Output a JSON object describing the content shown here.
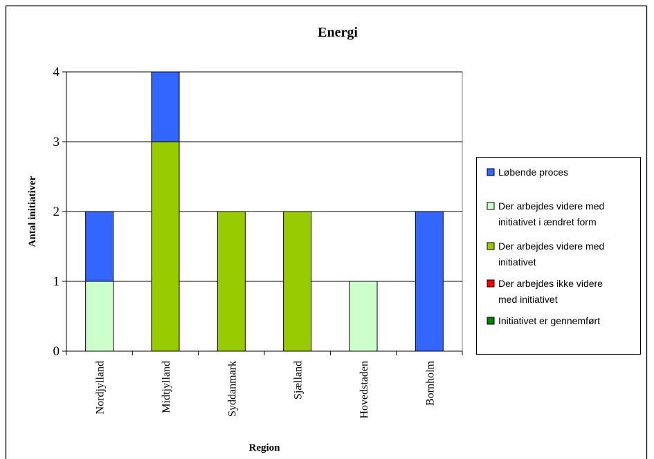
{
  "chart_data": {
    "type": "bar",
    "stacked": true,
    "title": "Energi",
    "xlabel": "Region",
    "ylabel": "Antal initiativer",
    "ylim": [
      0,
      4
    ],
    "yticks": [
      0,
      1,
      2,
      3,
      4
    ],
    "grid": true,
    "legend_position": "right",
    "categories": [
      "Nordjylland",
      "Midtjylland",
      "Syddanmark",
      "Sjælland",
      "Hovedstaden",
      "Bornholm"
    ],
    "series": [
      {
        "name": "Initiativet er gennemført",
        "color": "#008000",
        "values": [
          0,
          0,
          0,
          0,
          0,
          0
        ]
      },
      {
        "name": "Der arbejdes ikke videre med initiativet",
        "color": "#ff0000",
        "values": [
          0,
          0,
          0,
          0,
          0,
          0
        ]
      },
      {
        "name": "Der arbejdes videre med initiativet",
        "color": "#99cc00",
        "values": [
          0,
          3,
          2,
          2,
          0,
          0
        ]
      },
      {
        "name": "Der arbejdes videre med initiativet i ændret form",
        "color": "#ccffcc",
        "values": [
          1,
          0,
          0,
          0,
          1,
          0
        ]
      },
      {
        "name": "Løbende proces",
        "color": "#3366ff",
        "values": [
          1,
          1,
          0,
          0,
          0,
          2
        ]
      }
    ],
    "legend_order": [
      4,
      3,
      2,
      1,
      0
    ],
    "legend_lines": [
      [
        "Løbende proces"
      ],
      [
        "Der arbejdes videre med",
        "initiativet i ændret form"
      ],
      [
        "Der arbejdes videre med",
        "initiativet"
      ],
      [
        "Der arbejdes ikke videre",
        "med initiativet"
      ],
      [
        "Initiativet er gennemført"
      ]
    ]
  }
}
